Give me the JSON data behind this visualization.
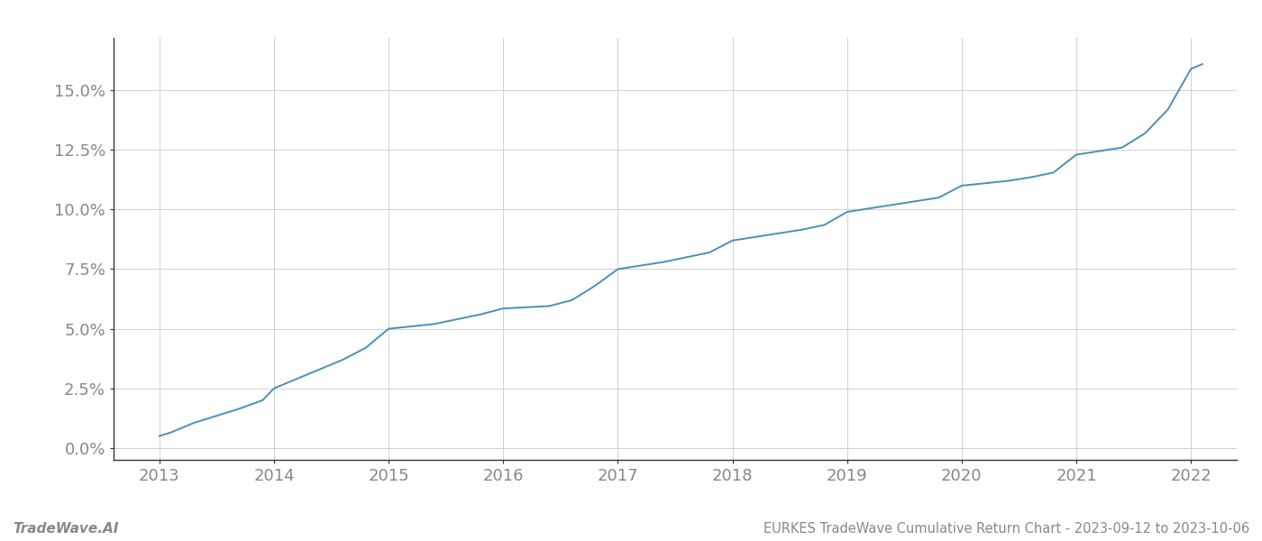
{
  "title": "EURKES TradeWave Cumulative Return Chart - 2023-09-12 to 2023-10-06",
  "watermark": "TradeWave.AI",
  "line_color": "#4a90b8",
  "background_color": "#ffffff",
  "grid_color": "#d0d0d0",
  "x_years": [
    2013.0,
    2013.1,
    2013.2,
    2013.3,
    2013.5,
    2013.7,
    2013.9,
    2014.0,
    2014.2,
    2014.4,
    2014.6,
    2014.8,
    2015.0,
    2015.1,
    2015.2,
    2015.4,
    2015.6,
    2015.8,
    2016.0,
    2016.2,
    2016.4,
    2016.6,
    2016.8,
    2017.0,
    2017.2,
    2017.4,
    2017.6,
    2017.8,
    2018.0,
    2018.2,
    2018.4,
    2018.6,
    2018.8,
    2019.0,
    2019.2,
    2019.4,
    2019.6,
    2019.8,
    2020.0,
    2020.2,
    2020.4,
    2020.6,
    2020.8,
    2021.0,
    2021.2,
    2021.4,
    2021.6,
    2021.8,
    2022.0,
    2022.1
  ],
  "y_values": [
    0.5,
    0.65,
    0.85,
    1.05,
    1.35,
    1.65,
    2.0,
    2.5,
    2.9,
    3.3,
    3.7,
    4.2,
    5.0,
    5.05,
    5.1,
    5.2,
    5.4,
    5.6,
    5.85,
    5.9,
    5.95,
    6.2,
    6.8,
    7.5,
    7.65,
    7.8,
    8.0,
    8.2,
    8.7,
    8.85,
    9.0,
    9.15,
    9.35,
    9.9,
    10.05,
    10.2,
    10.35,
    10.5,
    11.0,
    11.1,
    11.2,
    11.35,
    11.55,
    12.3,
    12.45,
    12.6,
    13.2,
    14.2,
    15.9,
    16.1
  ],
  "yticks": [
    0.0,
    2.5,
    5.0,
    7.5,
    10.0,
    12.5,
    15.0
  ],
  "xticks": [
    2013,
    2014,
    2015,
    2016,
    2017,
    2018,
    2019,
    2020,
    2021,
    2022
  ],
  "xlim": [
    2012.6,
    2022.4
  ],
  "ylim": [
    -0.5,
    17.2
  ],
  "line_width": 1.4,
  "title_fontsize": 10.5,
  "watermark_fontsize": 11,
  "tick_fontsize": 13,
  "axis_color": "#333333",
  "tick_color": "#888888",
  "spine_color": "#333333"
}
